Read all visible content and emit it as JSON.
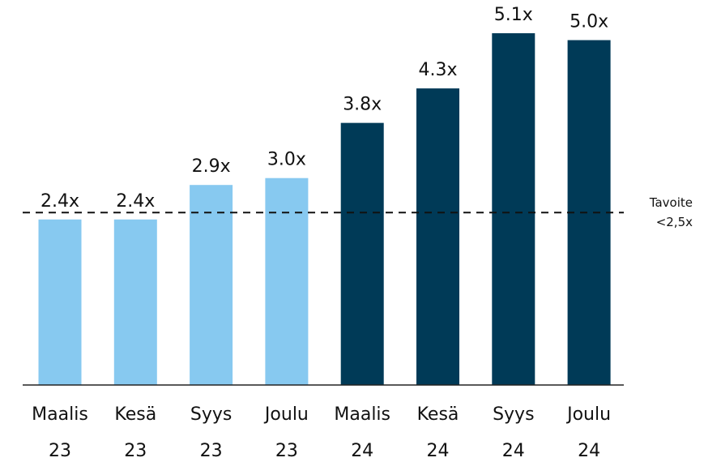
{
  "chart_data": {
    "type": "bar",
    "categories": [
      [
        "Maalis",
        "23"
      ],
      [
        "Kesä",
        "23"
      ],
      [
        "Syys",
        "23"
      ],
      [
        "Joulu",
        "23"
      ],
      [
        "Maalis",
        "24"
      ],
      [
        "Kesä",
        "24"
      ],
      [
        "Syys",
        "24"
      ],
      [
        "Joulu",
        "24"
      ]
    ],
    "values": [
      2.4,
      2.4,
      2.9,
      3.0,
      3.8,
      4.3,
      5.1,
      5.0
    ],
    "value_labels": [
      "2.4x",
      "2.4x",
      "2.9x",
      "3.0x",
      "3.8x",
      "4.3x",
      "5.1x",
      "5.0x"
    ],
    "colors": [
      "#87c9f0",
      "#87c9f0",
      "#87c9f0",
      "#87c9f0",
      "#003a57",
      "#003a57",
      "#003a57",
      "#003a57"
    ],
    "target": {
      "value": 2.5,
      "label_lines": [
        "Tavoite",
        "<2,5x"
      ]
    }
  }
}
